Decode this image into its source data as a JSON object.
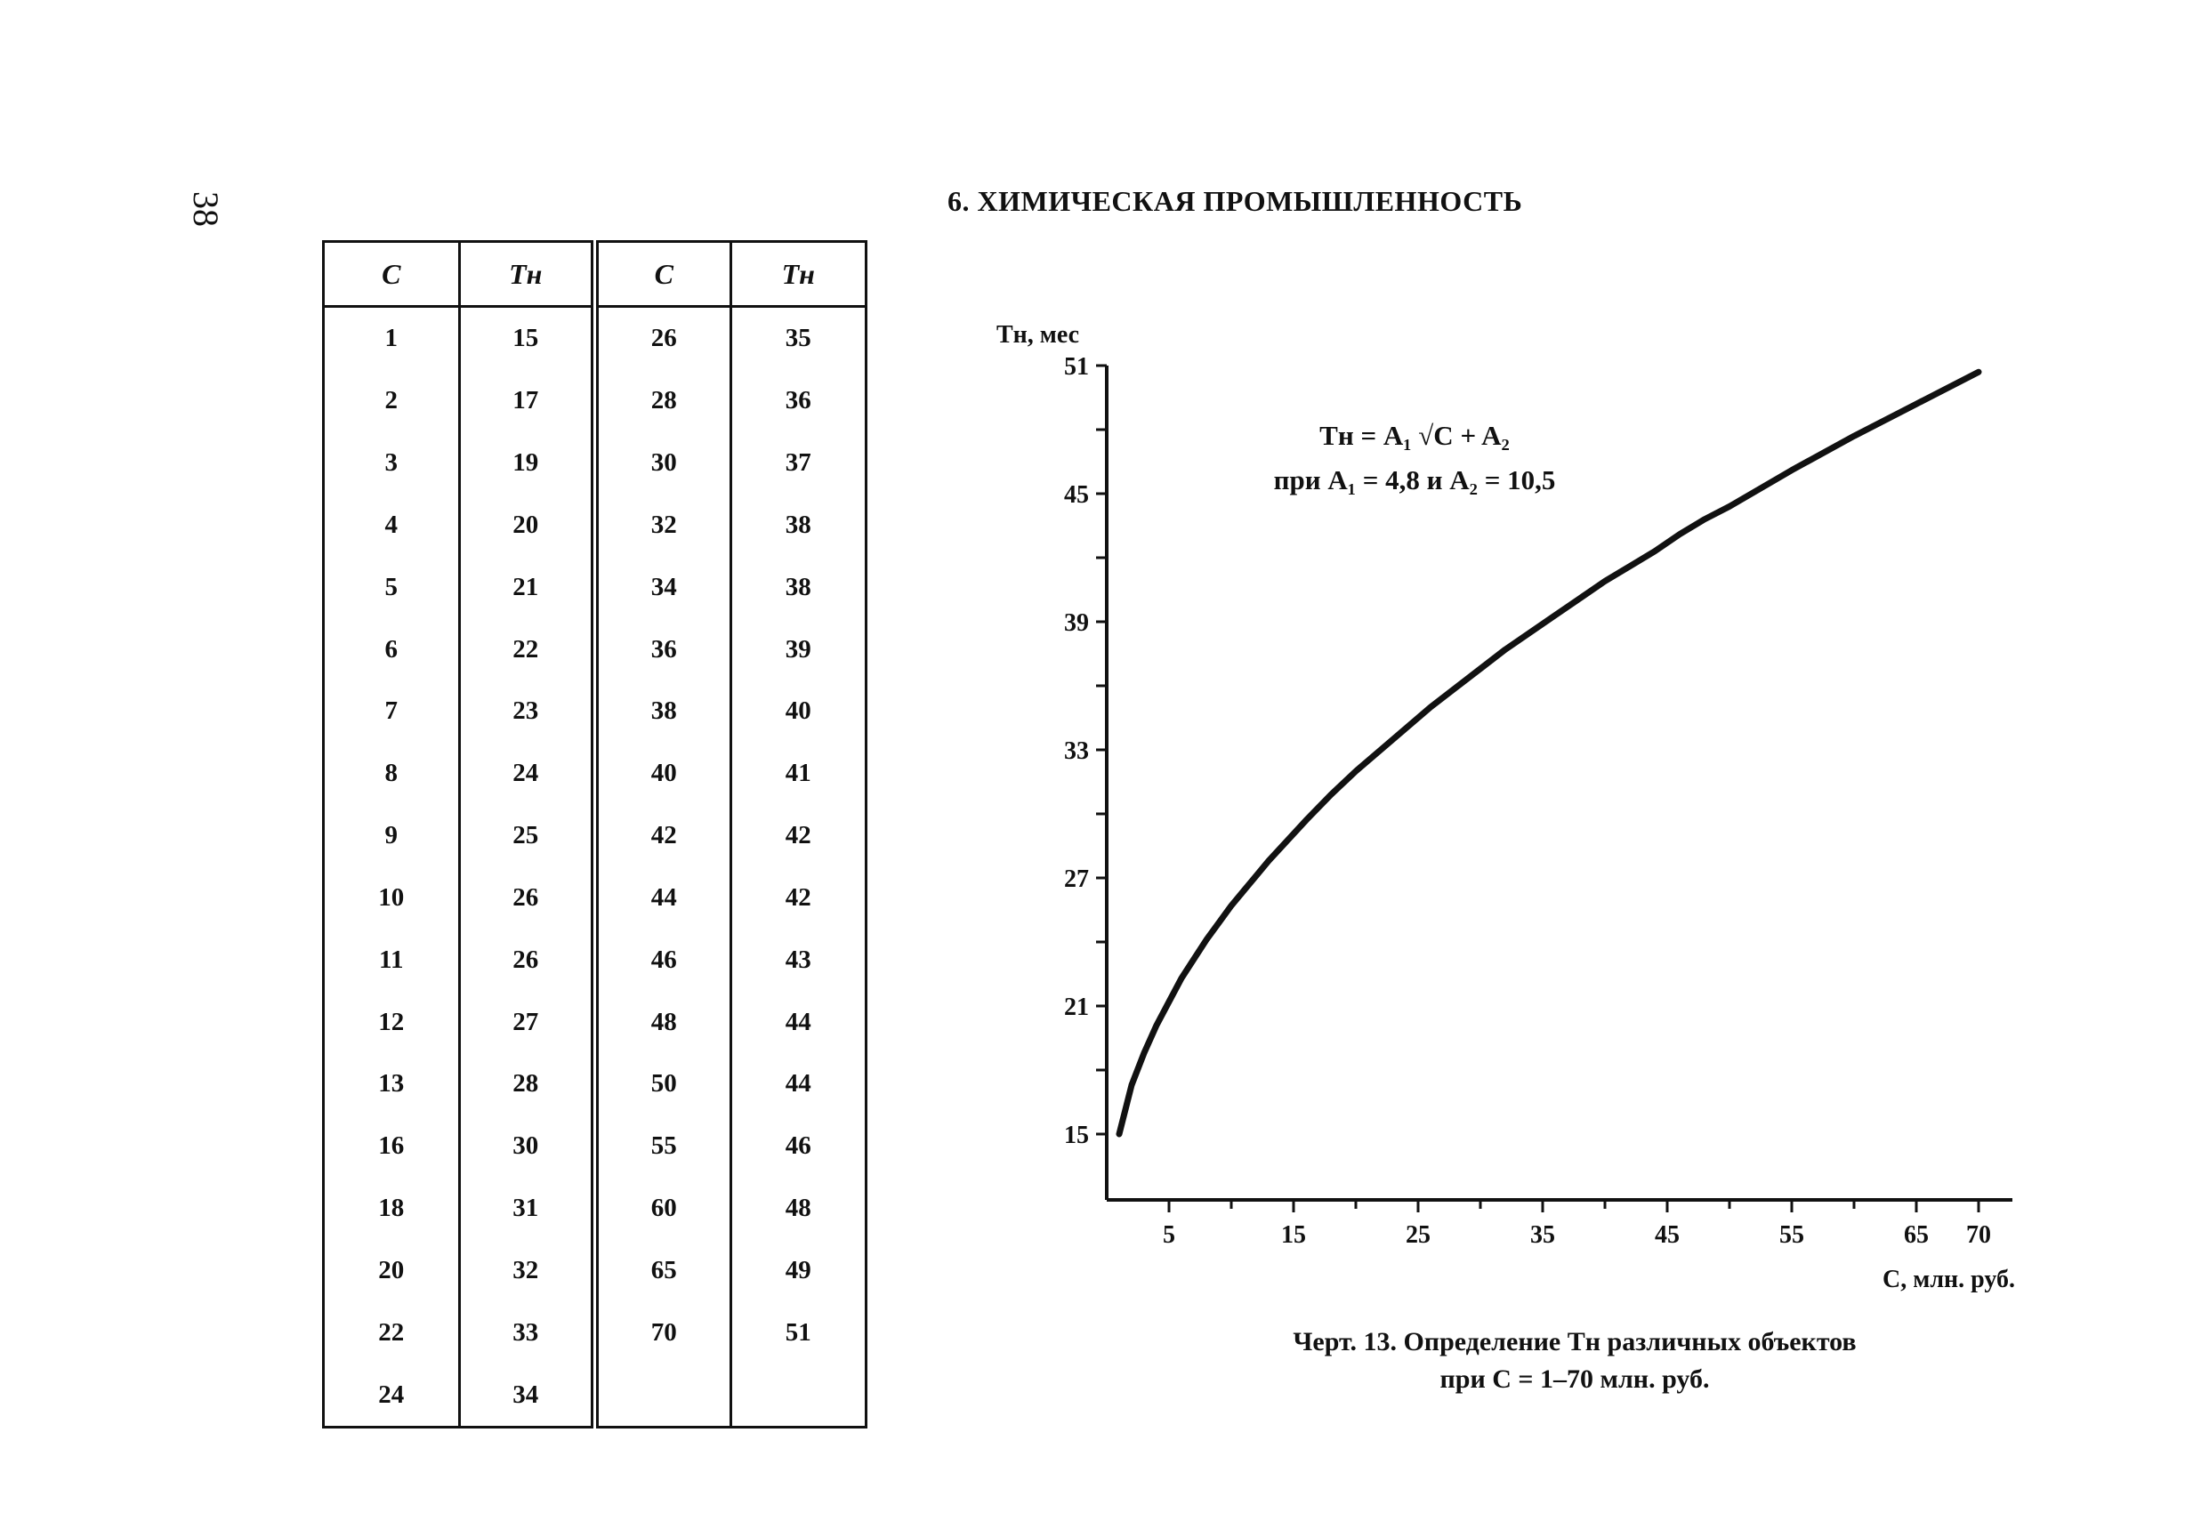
{
  "page_number": "38",
  "section_title": "6. ХИМИЧЕСКАЯ ПРОМЫШЛЕННОСТЬ",
  "table": {
    "headers": [
      "C",
      "Tн",
      "C",
      "Tн"
    ],
    "rows": [
      [
        "1",
        "15",
        "26",
        "35"
      ],
      [
        "2",
        "17",
        "28",
        "36"
      ],
      [
        "3",
        "19",
        "30",
        "37"
      ],
      [
        "4",
        "20",
        "32",
        "38"
      ],
      [
        "5",
        "21",
        "34",
        "38"
      ],
      [
        "6",
        "22",
        "36",
        "39"
      ],
      [
        "7",
        "23",
        "38",
        "40"
      ],
      [
        "8",
        "24",
        "40",
        "41"
      ],
      [
        "9",
        "25",
        "42",
        "42"
      ],
      [
        "10",
        "26",
        "44",
        "42"
      ],
      [
        "11",
        "26",
        "46",
        "43"
      ],
      [
        "12",
        "27",
        "48",
        "44"
      ],
      [
        "13",
        "28",
        "50",
        "44"
      ],
      [
        "16",
        "30",
        "55",
        "46"
      ],
      [
        "18",
        "31",
        "60",
        "48"
      ],
      [
        "20",
        "32",
        "65",
        "49"
      ],
      [
        "22",
        "33",
        "70",
        "51"
      ],
      [
        "24",
        "34",
        "",
        ""
      ]
    ]
  },
  "formula": {
    "line1": "Tн = A₁ √C + A₂",
    "line2": "при A₁ = 4,8 и A₂ = 10,5"
  },
  "caption": {
    "line1": "Черт. 13. Определение Tн различных объектов",
    "line2": "при C = 1–70 млн. руб."
  },
  "chart_data": {
    "type": "line",
    "xlabel": "C, млн. руб.",
    "ylabel": "Tн, мес",
    "xlim": [
      0,
      72
    ],
    "ylim": [
      12,
      51
    ],
    "x_ticks": [
      5,
      15,
      25,
      35,
      45,
      55,
      65,
      70
    ],
    "y_ticks": [
      15,
      21,
      27,
      33,
      39,
      45,
      51
    ],
    "grid": false,
    "series": [
      {
        "x": [
          1,
          2,
          3,
          4,
          5,
          6,
          7,
          8,
          9,
          10,
          11,
          12,
          13,
          16,
          18,
          20,
          22,
          24,
          26,
          28,
          30,
          32,
          34,
          36,
          38,
          40,
          42,
          44,
          46,
          48,
          50,
          55,
          60,
          65,
          70
        ],
        "values": [
          15,
          17.3,
          18.8,
          20.1,
          21.2,
          22.3,
          23.2,
          24.1,
          24.9,
          25.7,
          26.4,
          27.1,
          27.8,
          29.7,
          30.9,
          32.0,
          33.0,
          34.0,
          35.0,
          35.9,
          36.8,
          37.7,
          38.5,
          39.3,
          40.1,
          40.9,
          41.6,
          42.3,
          43.1,
          43.8,
          44.4,
          46.1,
          47.7,
          49.2,
          50.7
        ]
      }
    ]
  }
}
